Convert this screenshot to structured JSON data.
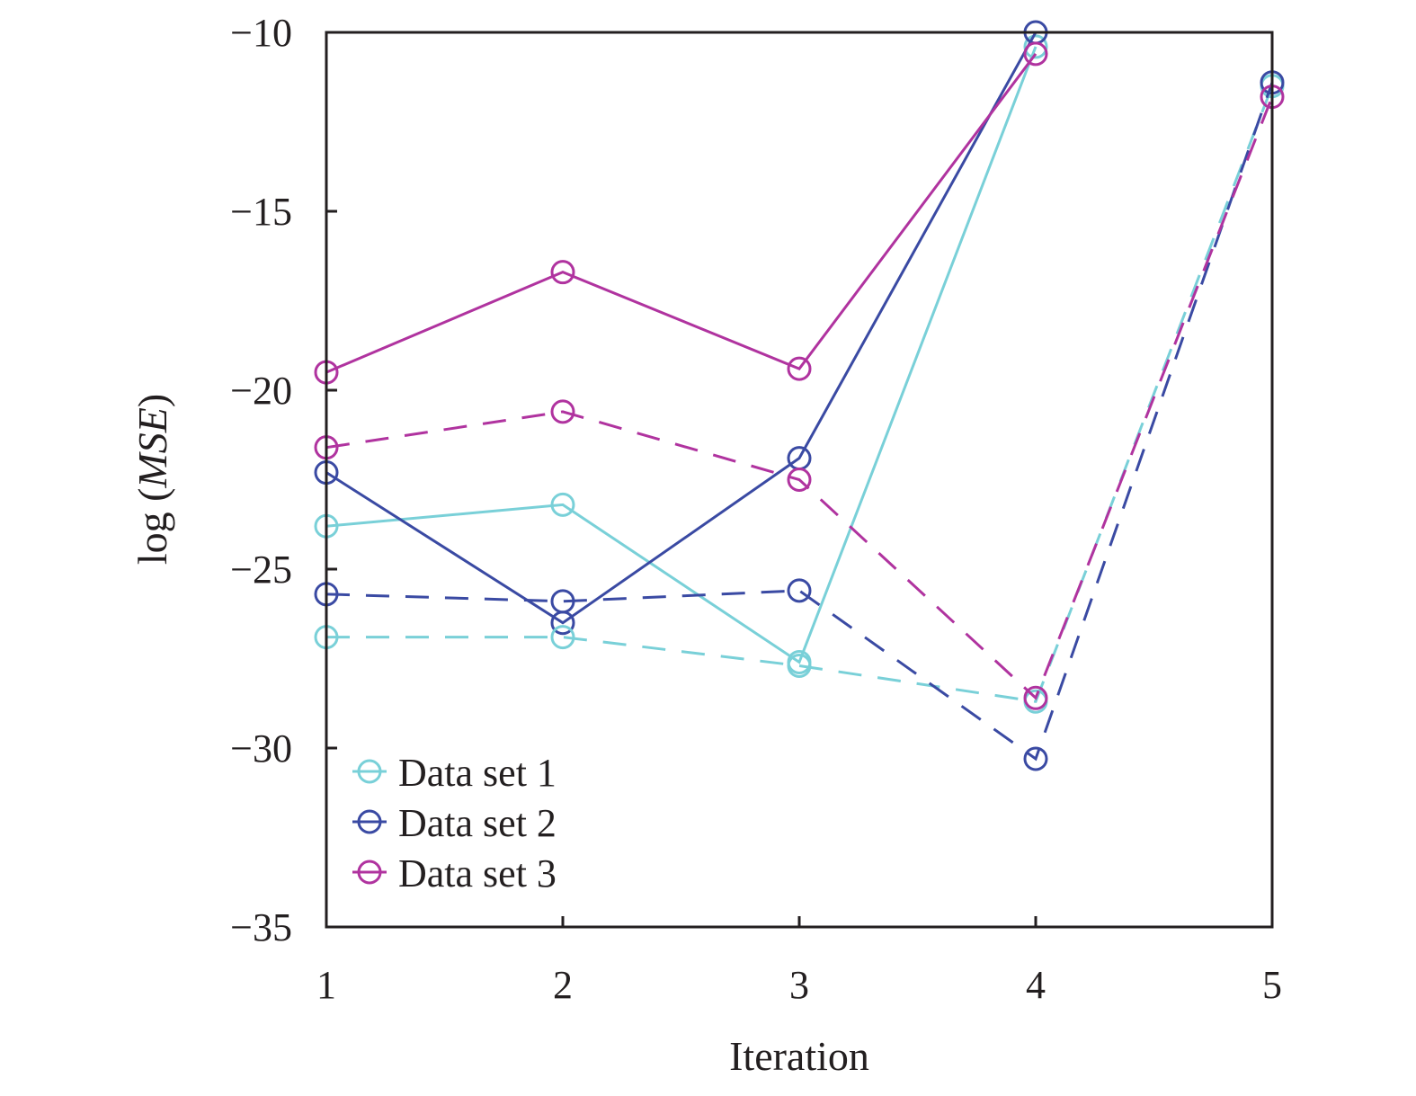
{
  "chart_data": {
    "type": "line",
    "xlabel": "Iteration",
    "ylabel_prefix": "log (",
    "ylabel_italic": "MSE",
    "ylabel_suffix": ")",
    "xlim": [
      1,
      5
    ],
    "ylim": [
      -35,
      -10
    ],
    "xticks": [
      1,
      2,
      3,
      4,
      5
    ],
    "yticks": [
      -35,
      -30,
      -25,
      -20,
      -15,
      -10
    ],
    "ytick_labels": [
      "−35",
      "−30",
      "−25",
      "−20",
      "−15",
      "−10"
    ],
    "grid": false,
    "legend_position": "bottom-left",
    "series": [
      {
        "name": "Data set 1",
        "color": "#79d0d8",
        "style": "solid",
        "x": [
          1,
          2,
          3,
          4
        ],
        "y": [
          -23.8,
          -23.2,
          -27.6,
          -10.4
        ]
      },
      {
        "name": "Data set 2",
        "color": "#3a4aa3",
        "style": "solid",
        "x": [
          1,
          2,
          3,
          4
        ],
        "y": [
          -22.3,
          -26.5,
          -21.9,
          -10.0
        ]
      },
      {
        "name": "Data set 3",
        "color": "#b0339f",
        "style": "solid",
        "x": [
          1,
          2,
          3,
          4
        ],
        "y": [
          -19.5,
          -16.7,
          -19.4,
          -10.6
        ]
      },
      {
        "color": "#79d0d8",
        "style": "dashed",
        "x": [
          1,
          2,
          3,
          4,
          5
        ],
        "y": [
          -26.9,
          -26.9,
          -27.7,
          -28.7,
          -11.5
        ]
      },
      {
        "color": "#3a4aa3",
        "style": "dashed",
        "x": [
          1,
          2,
          3,
          4,
          5
        ],
        "y": [
          -25.7,
          -25.9,
          -25.6,
          -30.3,
          -11.4
        ]
      },
      {
        "color": "#b0339f",
        "style": "dashed",
        "x": [
          1,
          2,
          3,
          4,
          5
        ],
        "y": [
          -21.6,
          -20.6,
          -22.5,
          -28.6,
          -11.8
        ]
      }
    ]
  }
}
